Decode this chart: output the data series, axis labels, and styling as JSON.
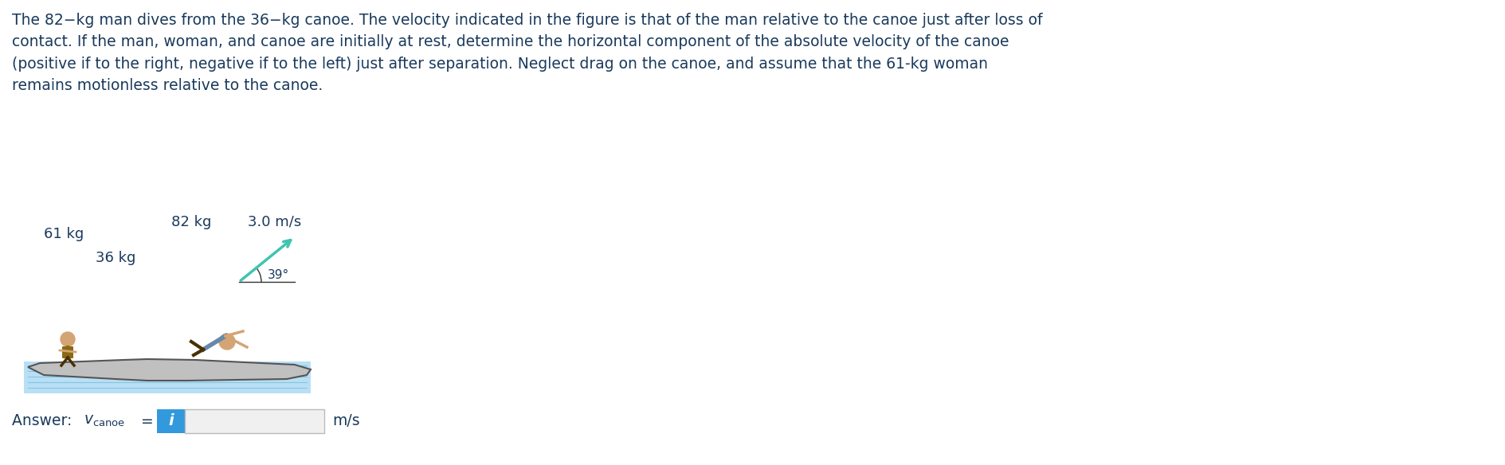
{
  "title_text": "The 82−kg man dives from the 36−kg canoe. The velocity indicated in the figure is that of the man relative to the canoe just after loss of\ncontact. If the man, woman, and canoe are initially at rest, determine the horizontal component of the absolute velocity of the canoe\n(positive if to the right, negative if to the left) just after separation. Neglect drag on the canoe, and assume that the 61-kg woman\nremains motionless relative to the canoe.",
  "title_color": "#1a3a5c",
  "title_fontsize": 13.5,
  "answer_text_prefix": "Answer: v",
  "answer_subscript": "canoe",
  "answer_text_suffix": " = ",
  "answer_unit": "m/s",
  "answer_fontsize": 13.5,
  "answer_color": "#1a3a5c",
  "label_61kg": "61 kg",
  "label_36kg": "36 kg",
  "label_82kg": "82 kg",
  "label_velocity": "3.0 m/s",
  "label_angle": "39°",
  "label_color": "#1a3a5c",
  "label_fontsize": 13,
  "water_color": "#b8dff5",
  "water_line_color": "#5aadcf",
  "canoe_color": "#c0c0c0",
  "canoe_edge_color": "#555555",
  "velocity_arrow_color": "#3fc4b0",
  "angle_line_color": "#333333",
  "input_box_color": "#f0f0f0",
  "input_box_edge_color": "#bbbbbb",
  "info_box_color": "#3399dd",
  "background_color": "#ffffff",
  "figure_width": 18.9,
  "figure_height": 5.84
}
